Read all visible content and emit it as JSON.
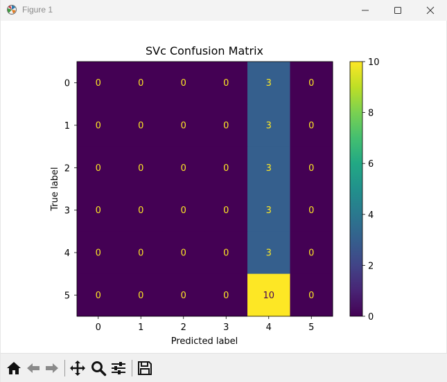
{
  "window": {
    "title": "Figure 1",
    "icon": "matplotlib-figure-icon",
    "controls": [
      "minimize-icon",
      "maximize-icon",
      "close-icon"
    ]
  },
  "toolbar": {
    "tools": [
      {
        "name": "home",
        "icon": "home-icon",
        "enabled": true
      },
      {
        "name": "back",
        "icon": "arrow-left-icon",
        "enabled": false
      },
      {
        "name": "forward",
        "icon": "arrow-right-icon",
        "enabled": false
      },
      {
        "name": "pan",
        "icon": "move-icon",
        "enabled": true
      },
      {
        "name": "zoom",
        "icon": "magnifier-icon",
        "enabled": true
      },
      {
        "name": "configure-subplots",
        "icon": "sliders-icon",
        "enabled": true
      },
      {
        "name": "save",
        "icon": "floppy-disk-icon",
        "enabled": true
      }
    ]
  },
  "chart_data": {
    "type": "heatmap",
    "title": "SVc Confusion Matrix",
    "xlabel": "Predicted label",
    "ylabel": "True label",
    "x_categories": [
      "0",
      "1",
      "2",
      "3",
      "4",
      "5"
    ],
    "y_categories": [
      "0",
      "1",
      "2",
      "3",
      "4",
      "5"
    ],
    "values": [
      [
        0,
        0,
        0,
        0,
        3,
        0
      ],
      [
        0,
        0,
        0,
        0,
        3,
        0
      ],
      [
        0,
        0,
        0,
        0,
        3,
        0
      ],
      [
        0,
        0,
        0,
        0,
        3,
        0
      ],
      [
        0,
        0,
        0,
        0,
        3,
        0
      ],
      [
        0,
        0,
        0,
        0,
        10,
        0
      ]
    ],
    "colormap": "viridis",
    "colorbar": {
      "vmin": 0,
      "vmax": 10,
      "ticks": [
        "0",
        "2",
        "4",
        "6",
        "8",
        "10"
      ]
    },
    "colors": {
      "low": "#440154",
      "mid": "#31688e",
      "high": "#fde725",
      "text_on_dark": "#fde725",
      "text_on_light": "#440154"
    },
    "grid": false,
    "legend": "colorbar-right"
  }
}
